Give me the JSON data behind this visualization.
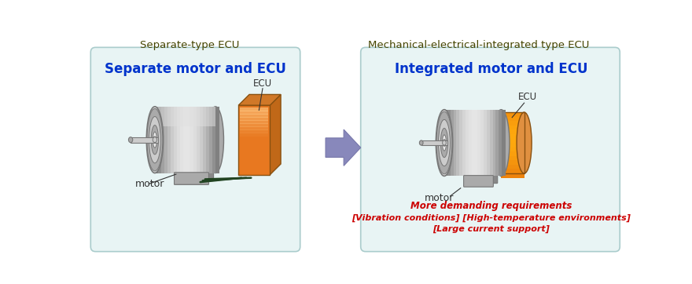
{
  "bg_color": "#ffffff",
  "left_box_bg": "#e8f4f4",
  "right_box_bg": "#e8f4f4",
  "left_title_above": "Separate-type ECU",
  "right_title_above": "Mechanical-electrical-integrated type ECU",
  "left_box_title": "Separate motor and ECU",
  "right_box_title": "Integrated motor and ECU",
  "left_box_title_color": "#0033cc",
  "right_box_title_color": "#0033cc",
  "arrow_color": "#8888bb",
  "motor_label": "motor",
  "ecu_label": "ECU",
  "red_text_line1": "More demanding requirements",
  "red_text_line2": "[Vibration conditions] [High-temperature environments]",
  "red_text_line3": "[Large current support]",
  "red_text_color": "#cc0000",
  "above_title_color": "#444400",
  "ecu_orange": "#e87820",
  "ecu_orange_light": "#f5b060",
  "ecu_orange_dark": "#b05010",
  "motor_gray": "#b0b0b0",
  "motor_gray_light": "#d8d8d8",
  "motor_gray_dark": "#888888",
  "motor_gray_mid": "#a0a0a0"
}
